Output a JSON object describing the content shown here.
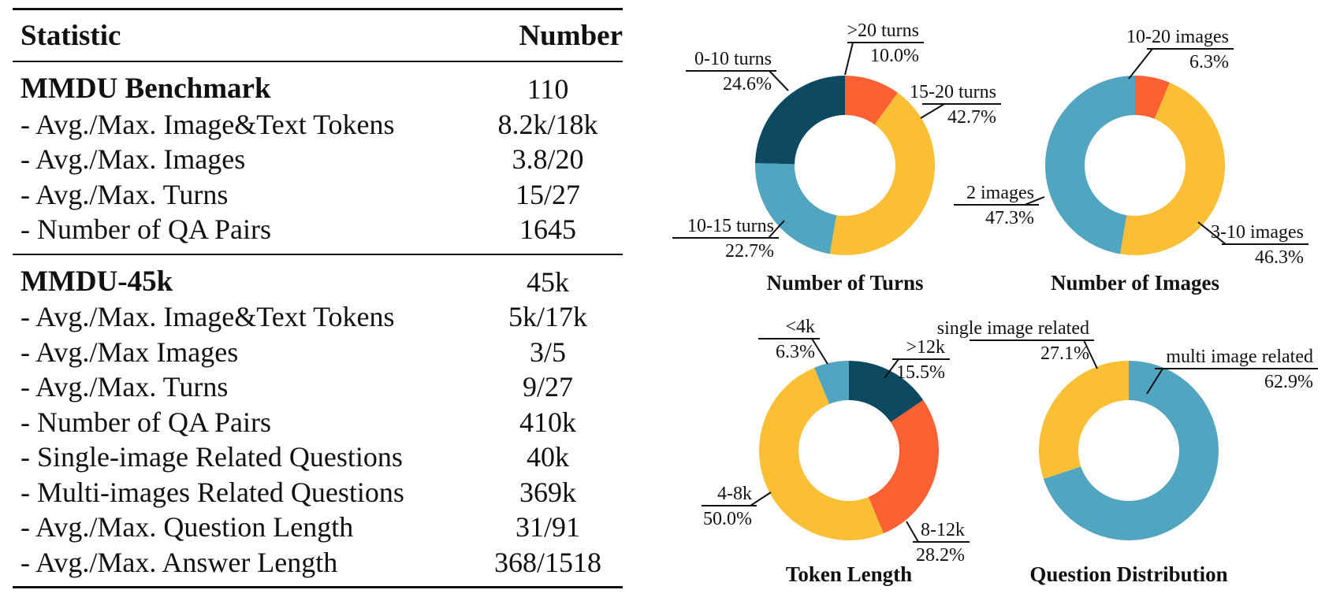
{
  "table": {
    "header": {
      "statistic": "Statistic",
      "number": "Number"
    },
    "groups": [
      {
        "title": "MMDU Benchmark",
        "total": "110",
        "rows": [
          {
            "label": "- Avg./Max. Image&Text Tokens",
            "value": "8.2k/18k"
          },
          {
            "label": "- Avg./Max. Images",
            "value": "3.8/20"
          },
          {
            "label": "- Avg./Max. Turns",
            "value": "15/27"
          },
          {
            "label": "- Number of QA Pairs",
            "value": "1645"
          }
        ]
      },
      {
        "title": "MMDU-45k",
        "total": "45k",
        "rows": [
          {
            "label": "- Avg./Max. Image&Text Tokens",
            "value": "5k/17k"
          },
          {
            "label": "- Avg./Max Images",
            "value": "3/5"
          },
          {
            "label": "- Avg./Max. Turns",
            "value": "9/27"
          },
          {
            "label": "- Number of QA Pairs",
            "value": "410k"
          },
          {
            "label": "- Single-image Related Questions",
            "value": "40k"
          },
          {
            "label": "- Multi-images Related Questions",
            "value": "369k"
          },
          {
            "label": "- Avg./Max. Question Length",
            "value": "31/91"
          },
          {
            "label": "- Avg./Max. Answer Length",
            "value": "368/1518"
          }
        ]
      }
    ]
  },
  "colors": {
    "dark_blue": "#0d4a62",
    "orange": "#fd6133",
    "yellow": "#fbbf35",
    "light_blue": "#52a5c0"
  },
  "chart_data": [
    {
      "type": "pie",
      "title": "Number of Turns",
      "donut": true,
      "slices": [
        {
          "label": ">20 turns",
          "value": 10.0,
          "pct_text": "10.0%",
          "color": "#fd6133"
        },
        {
          "label": "15-20 turns",
          "value": 42.7,
          "pct_text": "42.7%",
          "color": "#fbbf35"
        },
        {
          "label": "10-15 turns",
          "value": 22.7,
          "pct_text": "22.7%",
          "color": "#52a5c0"
        },
        {
          "label": "0-10 turns",
          "value": 24.6,
          "pct_text": "24.6%",
          "color": "#0d4a62"
        }
      ]
    },
    {
      "type": "pie",
      "title": "Number of Images",
      "donut": true,
      "slices": [
        {
          "label": "10-20 images",
          "value": 6.3,
          "pct_text": "6.3%",
          "color": "#fd6133"
        },
        {
          "label": "3-10 images",
          "value": 46.3,
          "pct_text": "46.3%",
          "color": "#fbbf35"
        },
        {
          "label": "2 images",
          "value": 47.3,
          "pct_text": "47.3%",
          "color": "#52a5c0"
        }
      ]
    },
    {
      "type": "pie",
      "title": "Token Length",
      "donut": true,
      "slices": [
        {
          "label": ">12k",
          "value": 15.5,
          "pct_text": "15.5%",
          "color": "#0d4a62"
        },
        {
          "label": "8-12k",
          "value": 28.2,
          "pct_text": "28.2%",
          "color": "#fd6133"
        },
        {
          "label": "4-8k",
          "value": 50.0,
          "pct_text": "50.0%",
          "color": "#fbbf35"
        },
        {
          "label": "<4k",
          "value": 6.3,
          "pct_text": "6.3%",
          "color": "#52a5c0"
        }
      ]
    },
    {
      "type": "pie",
      "title": "Question Distribution",
      "donut": true,
      "slices": [
        {
          "label": "multi image related",
          "value": 62.9,
          "pct_text": "62.9%",
          "color": "#52a5c0"
        },
        {
          "label": "single image related",
          "value": 27.1,
          "pct_text": "27.1%",
          "color": "#fbbf35"
        }
      ]
    }
  ]
}
